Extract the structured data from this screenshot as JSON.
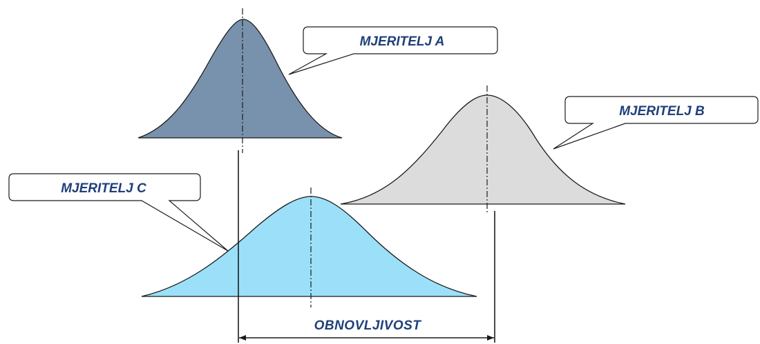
{
  "labels": {
    "a": "MJERITELJ A",
    "b": "MJERITELJ  B",
    "c": "MJERITELJ  C",
    "dimension": "OBNOVLJIVOST"
  },
  "colors": {
    "curve_a": "#7892ad",
    "curve_b": "#dcdcdc",
    "curve_c": "#9be0f8",
    "outline": "#1a1a1a",
    "label_text": "#1f3f7a"
  }
}
